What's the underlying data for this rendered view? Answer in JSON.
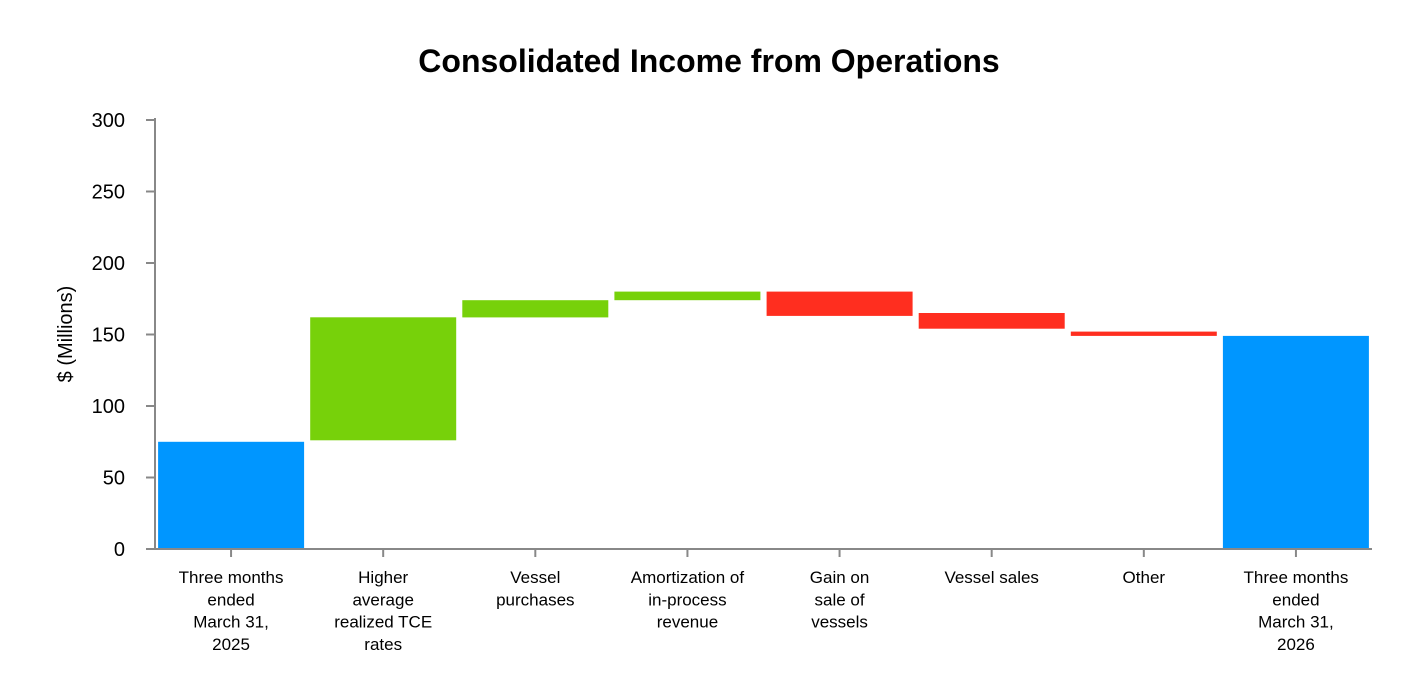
{
  "chart_data": {
    "type": "bar",
    "subtype": "waterfall",
    "title": "Consolidated Income from Operations",
    "xlabel": "",
    "ylabel": "$ (Millions)",
    "ylim": [
      0,
      300
    ],
    "yticks": [
      0,
      50,
      100,
      150,
      200,
      250,
      300
    ],
    "grid": false,
    "categories": [
      [
        "Three months",
        "ended",
        "March 31,",
        "2025"
      ],
      [
        "Higher",
        "average",
        "realized TCE",
        "rates"
      ],
      [
        "Vessel",
        "purchases"
      ],
      [
        "Amortization of",
        "in-process",
        "revenue"
      ],
      [
        "Gain on",
        "sale of",
        "vessels"
      ],
      [
        "Vessel sales"
      ],
      [
        "Other"
      ],
      [
        "Three months",
        "ended",
        "March 31,",
        "2026"
      ]
    ],
    "bars": [
      {
        "kind": "total",
        "start": 0,
        "end": 75
      },
      {
        "kind": "increase",
        "start": 76,
        "end": 162
      },
      {
        "kind": "increase",
        "start": 162,
        "end": 174
      },
      {
        "kind": "increase",
        "start": 174,
        "end": 180
      },
      {
        "kind": "decrease",
        "start": 180,
        "end": 163
      },
      {
        "kind": "decrease",
        "start": 165,
        "end": 154
      },
      {
        "kind": "decrease",
        "start": 152,
        "end": 149
      },
      {
        "kind": "total",
        "start": 0,
        "end": 149
      }
    ],
    "colors": {
      "total": "#0096FF",
      "increase": "#77D10A",
      "decrease": "#FF2E1F",
      "axis": "#888888"
    }
  }
}
